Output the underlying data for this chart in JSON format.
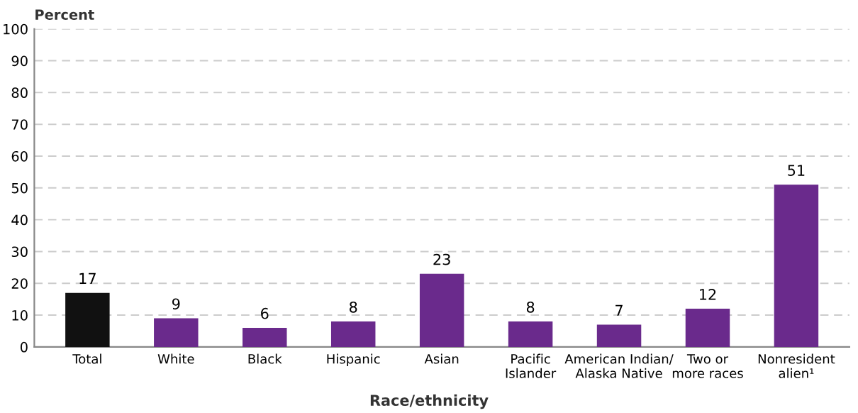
{
  "chart_data": {
    "type": "bar",
    "ylabel": "Percent",
    "xlabel": "Race/ethnicity",
    "categories": [
      "Total",
      "White",
      "Black",
      "Hispanic",
      "Asian",
      "Pacific\nIslander",
      "American Indian/\nAlaska Native",
      "Two or\nmore races",
      "Nonresident\nalien¹"
    ],
    "values": [
      17,
      9,
      6,
      8,
      23,
      8,
      7,
      12,
      51
    ],
    "colors": [
      "#111111",
      "#6a2a8c",
      "#6a2a8c",
      "#6a2a8c",
      "#6a2a8c",
      "#6a2a8c",
      "#6a2a8c",
      "#6a2a8c",
      "#6a2a8c"
    ],
    "ylim": [
      0,
      100
    ],
    "yticks": [
      0,
      10,
      20,
      30,
      40,
      50,
      60,
      70,
      80,
      90,
      100
    ],
    "grid": "y",
    "data_labels": true
  }
}
